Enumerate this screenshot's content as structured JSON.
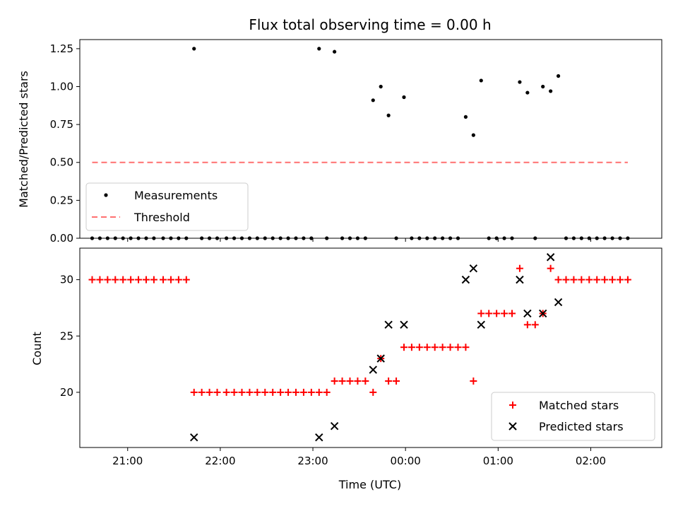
{
  "chart_data": [
    {
      "type": "scatter",
      "title": "Flux total observing time = 0.00 h",
      "ylabel": "Matched/Predicted stars",
      "ylim": [
        0,
        1.31
      ],
      "yticks": [
        0,
        0.25,
        0.5,
        0.75,
        1.0,
        1.25
      ],
      "ytick_labels": [
        "0.00",
        "0.25",
        "0.50",
        "0.75",
        "1.00",
        "1.25"
      ],
      "xlim_minutes": [
        -31,
        346
      ],
      "legend_position": "bottom-left",
      "marker_color": "#000000",
      "threshold_color": "#ff7070",
      "series": [
        {
          "name": "Measurements",
          "points": [
            {
              "t": -23,
              "v": 0
            },
            {
              "t": -18,
              "v": 0
            },
            {
              "t": -13,
              "v": 0
            },
            {
              "t": -8,
              "v": 0
            },
            {
              "t": -3,
              "v": 0
            },
            {
              "t": 2,
              "v": 0
            },
            {
              "t": 7,
              "v": 0
            },
            {
              "t": 12,
              "v": 0
            },
            {
              "t": 17,
              "v": 0
            },
            {
              "t": 23,
              "v": 0
            },
            {
              "t": 28,
              "v": 0
            },
            {
              "t": 33,
              "v": 0
            },
            {
              "t": 38,
              "v": 0
            },
            {
              "t": 43,
              "v": 1.25
            },
            {
              "t": 48,
              "v": 0
            },
            {
              "t": 53,
              "v": 0
            },
            {
              "t": 58,
              "v": 0
            },
            {
              "t": 64,
              "v": 0
            },
            {
              "t": 69,
              "v": 0
            },
            {
              "t": 74,
              "v": 0
            },
            {
              "t": 79,
              "v": 0
            },
            {
              "t": 84,
              "v": 0
            },
            {
              "t": 89,
              "v": 0
            },
            {
              "t": 94,
              "v": 0
            },
            {
              "t": 99,
              "v": 0
            },
            {
              "t": 104,
              "v": 0
            },
            {
              "t": 109,
              "v": 0
            },
            {
              "t": 114,
              "v": 0
            },
            {
              "t": 119,
              "v": 0
            },
            {
              "t": 124,
              "v": 1.25
            },
            {
              "t": 129,
              "v": 0
            },
            {
              "t": 134,
              "v": 1.23
            },
            {
              "t": 139,
              "v": 0
            },
            {
              "t": 144,
              "v": 0
            },
            {
              "t": 149,
              "v": 0
            },
            {
              "t": 154,
              "v": 0
            },
            {
              "t": 159,
              "v": 0.91
            },
            {
              "t": 164,
              "v": 1.0
            },
            {
              "t": 169,
              "v": 0.81
            },
            {
              "t": 174,
              "v": 0
            },
            {
              "t": 179,
              "v": 0.93
            },
            {
              "t": 184,
              "v": 0
            },
            {
              "t": 189,
              "v": 0
            },
            {
              "t": 194,
              "v": 0
            },
            {
              "t": 199,
              "v": 0
            },
            {
              "t": 204,
              "v": 0
            },
            {
              "t": 209,
              "v": 0
            },
            {
              "t": 214,
              "v": 0
            },
            {
              "t": 219,
              "v": 0.8
            },
            {
              "t": 224,
              "v": 0.68
            },
            {
              "t": 229,
              "v": 1.04
            },
            {
              "t": 234,
              "v": 0
            },
            {
              "t": 239,
              "v": 0
            },
            {
              "t": 244,
              "v": 0
            },
            {
              "t": 249,
              "v": 0
            },
            {
              "t": 254,
              "v": 1.03
            },
            {
              "t": 259,
              "v": 0.96
            },
            {
              "t": 264,
              "v": 0
            },
            {
              "t": 269,
              "v": 1.0
            },
            {
              "t": 274,
              "v": 0.97
            },
            {
              "t": 279,
              "v": 1.07
            },
            {
              "t": 284,
              "v": 0
            },
            {
              "t": 289,
              "v": 0
            },
            {
              "t": 294,
              "v": 0
            },
            {
              "t": 299,
              "v": 0
            },
            {
              "t": 304,
              "v": 0
            },
            {
              "t": 309,
              "v": 0
            },
            {
              "t": 314,
              "v": 0
            },
            {
              "t": 319,
              "v": 0
            },
            {
              "t": 324,
              "v": 0
            }
          ]
        },
        {
          "name": "Threshold",
          "line": {
            "t_start": -23,
            "t_end": 324,
            "v": 0.5
          }
        }
      ]
    },
    {
      "type": "scatter",
      "xlabel": "Time (UTC)",
      "ylabel": "Count",
      "ylim": [
        15.1,
        32.8
      ],
      "yticks": [
        20,
        25,
        30
      ],
      "ytick_labels": [
        "20",
        "25",
        "30"
      ],
      "xlim_minutes": [
        -31,
        346
      ],
      "xticks_minutes": [
        0,
        60,
        120,
        180,
        240,
        300
      ],
      "xtick_labels": [
        "21:00",
        "22:00",
        "23:00",
        "00:00",
        "01:00",
        "02:00"
      ],
      "legend_position": "bottom-right",
      "matched_color": "#ff0000",
      "predicted_color": "#000000",
      "series": [
        {
          "name": "Matched stars",
          "marker": "plus",
          "points": [
            {
              "t": -23,
              "v": 30
            },
            {
              "t": -18,
              "v": 30
            },
            {
              "t": -13,
              "v": 30
            },
            {
              "t": -8,
              "v": 30
            },
            {
              "t": -3,
              "v": 30
            },
            {
              "t": 2,
              "v": 30
            },
            {
              "t": 7,
              "v": 30
            },
            {
              "t": 12,
              "v": 30
            },
            {
              "t": 17,
              "v": 30
            },
            {
              "t": 23,
              "v": 30
            },
            {
              "t": 28,
              "v": 30
            },
            {
              "t": 33,
              "v": 30
            },
            {
              "t": 38,
              "v": 30
            },
            {
              "t": 43,
              "v": 20
            },
            {
              "t": 48,
              "v": 20
            },
            {
              "t": 53,
              "v": 20
            },
            {
              "t": 58,
              "v": 20
            },
            {
              "t": 64,
              "v": 20
            },
            {
              "t": 69,
              "v": 20
            },
            {
              "t": 74,
              "v": 20
            },
            {
              "t": 79,
              "v": 20
            },
            {
              "t": 84,
              "v": 20
            },
            {
              "t": 89,
              "v": 20
            },
            {
              "t": 94,
              "v": 20
            },
            {
              "t": 99,
              "v": 20
            },
            {
              "t": 104,
              "v": 20
            },
            {
              "t": 109,
              "v": 20
            },
            {
              "t": 114,
              "v": 20
            },
            {
              "t": 119,
              "v": 20
            },
            {
              "t": 124,
              "v": 20
            },
            {
              "t": 129,
              "v": 20
            },
            {
              "t": 134,
              "v": 21
            },
            {
              "t": 139,
              "v": 21
            },
            {
              "t": 144,
              "v": 21
            },
            {
              "t": 149,
              "v": 21
            },
            {
              "t": 154,
              "v": 21
            },
            {
              "t": 159,
              "v": 20
            },
            {
              "t": 164,
              "v": 23
            },
            {
              "t": 169,
              "v": 21
            },
            {
              "t": 174,
              "v": 21
            },
            {
              "t": 179,
              "v": 24
            },
            {
              "t": 184,
              "v": 24
            },
            {
              "t": 189,
              "v": 24
            },
            {
              "t": 194,
              "v": 24
            },
            {
              "t": 199,
              "v": 24
            },
            {
              "t": 204,
              "v": 24
            },
            {
              "t": 209,
              "v": 24
            },
            {
              "t": 214,
              "v": 24
            },
            {
              "t": 219,
              "v": 24
            },
            {
              "t": 224,
              "v": 21
            },
            {
              "t": 229,
              "v": 27
            },
            {
              "t": 234,
              "v": 27
            },
            {
              "t": 239,
              "v": 27
            },
            {
              "t": 244,
              "v": 27
            },
            {
              "t": 249,
              "v": 27
            },
            {
              "t": 254,
              "v": 31
            },
            {
              "t": 259,
              "v": 26
            },
            {
              "t": 264,
              "v": 26
            },
            {
              "t": 269,
              "v": 27
            },
            {
              "t": 274,
              "v": 31
            },
            {
              "t": 279,
              "v": 30
            },
            {
              "t": 284,
              "v": 30
            },
            {
              "t": 289,
              "v": 30
            },
            {
              "t": 294,
              "v": 30
            },
            {
              "t": 299,
              "v": 30
            },
            {
              "t": 304,
              "v": 30
            },
            {
              "t": 309,
              "v": 30
            },
            {
              "t": 314,
              "v": 30
            },
            {
              "t": 319,
              "v": 30
            },
            {
              "t": 324,
              "v": 30
            }
          ]
        },
        {
          "name": "Predicted stars",
          "marker": "x",
          "points": [
            {
              "t": 43,
              "v": 16
            },
            {
              "t": 124,
              "v": 16
            },
            {
              "t": 134,
              "v": 17
            },
            {
              "t": 159,
              "v": 22
            },
            {
              "t": 164,
              "v": 23
            },
            {
              "t": 169,
              "v": 26
            },
            {
              "t": 179,
              "v": 26
            },
            {
              "t": 219,
              "v": 30
            },
            {
              "t": 224,
              "v": 31
            },
            {
              "t": 229,
              "v": 26
            },
            {
              "t": 254,
              "v": 30
            },
            {
              "t": 259,
              "v": 27
            },
            {
              "t": 269,
              "v": 27
            },
            {
              "t": 274,
              "v": 32
            },
            {
              "t": 279,
              "v": 28
            }
          ]
        }
      ]
    }
  ]
}
